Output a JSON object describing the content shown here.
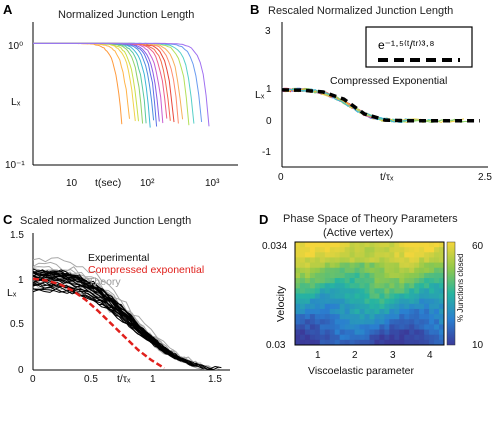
{
  "panels": {
    "A": {
      "label": "A",
      "title": "Normalized Junction Length",
      "ylabel": "Lₓ",
      "xlabel": "t(sec)",
      "yticks": [
        "10⁰",
        "10⁻¹"
      ],
      "xticks": [
        "10",
        "10²",
        "10³"
      ]
    },
    "B": {
      "label": "B",
      "title": "Rescaled Normalized Junction Length",
      "ylabel": "Lₓ",
      "xlabel": "t/τₓ",
      "yticks": [
        "3",
        "1",
        "0",
        "-1"
      ],
      "xticks": [
        "0",
        "2.5"
      ],
      "legend_formula": "e⁻¹·⁵⁽ᵗ/ᵗʳ⁾³·⁸",
      "legend_label": "Compressed Exponential"
    },
    "C": {
      "label": "C",
      "title": "Scaled normalized Junction Length",
      "ylabel": "Lₓ",
      "xlabel": "t/τₓ",
      "yticks": [
        "1.5",
        "1",
        "0.5",
        "0"
      ],
      "xticks": [
        "0",
        "0.5",
        "1",
        "1.5"
      ],
      "legend": [
        "Experimental",
        "Compressed exponential",
        "Theory"
      ]
    },
    "D": {
      "label": "D",
      "title": "Phase Space of Theory Parameters",
      "subtitle": "(Active vertex)",
      "ylabel": "Velocity",
      "xlabel": "Viscoelastic parameter",
      "yticks": [
        "0.034",
        "0.03"
      ],
      "xticks": [
        "1",
        "2",
        "3",
        "4"
      ],
      "colorbar_label": "% Junctions closed",
      "colorbar_ticks": [
        "60",
        "10"
      ]
    }
  },
  "colors": {
    "red": "#e0201c",
    "black": "#000000",
    "gray": "#a8a8a8"
  },
  "chart_data": [
    {
      "panel": "A",
      "type": "line",
      "title": "Normalized Junction Length",
      "xlabel": "t(sec)",
      "ylabel": "L",
      "xscale": "log",
      "yscale": "log",
      "xlim": [
        1,
        5000
      ],
      "ylim": [
        0.1,
        1.5
      ],
      "series_count": 20,
      "description_values": {
        "collapse_times_sec": [
          40,
          55,
          70,
          80,
          95,
          110,
          130,
          150,
          170,
          190,
          220,
          260,
          300,
          350,
          420,
          500,
          650,
          800,
          1100,
          1500
        ]
      }
    },
    {
      "panel": "B",
      "type": "line",
      "title": "Rescaled Normalized Junction Length",
      "xlabel": "t/τ",
      "ylabel": "L",
      "xlim": [
        0,
        2.5
      ],
      "ylim": [
        -1.5,
        3.2
      ],
      "series": [
        {
          "name": "Compressed Exponential",
          "x": [
            0,
            0.25,
            0.5,
            0.75,
            1.0,
            1.25,
            1.5,
            1.75,
            2.0,
            2.25,
            2.4
          ],
          "y": [
            1.0,
            0.99,
            0.93,
            0.7,
            0.22,
            0.02,
            0.0,
            0.0,
            0.0,
            0.0,
            0.0
          ]
        }
      ]
    },
    {
      "panel": "C",
      "type": "line",
      "title": "Scaled normalized Junction Length",
      "xlabel": "t/τ",
      "ylabel": "L",
      "xlim": [
        0,
        1.5
      ],
      "ylim": [
        0,
        1.5
      ],
      "series": [
        {
          "name": "Compressed exponential",
          "x": [
            0,
            0.1,
            0.2,
            0.3,
            0.4,
            0.5,
            0.6,
            0.7,
            0.8,
            0.9,
            1.0
          ],
          "y": [
            1.0,
            0.98,
            0.94,
            0.87,
            0.77,
            0.64,
            0.5,
            0.36,
            0.22,
            0.11,
            0.02
          ]
        }
      ],
      "legend": [
        "Experimental",
        "Compressed exponential",
        "Theory"
      ]
    },
    {
      "panel": "D",
      "type": "heatmap",
      "title": "Phase Space of Theory Parameters",
      "subtitle": "(Active vertex)",
      "xlabel": "Viscoelastic parameter",
      "ylabel": "Velocity",
      "xlim": [
        0.2,
        4.8
      ],
      "ylim": [
        0.03,
        0.034
      ],
      "colorbar": {
        "label": "% Junctions closed",
        "min": 10,
        "max": 60
      }
    }
  ]
}
